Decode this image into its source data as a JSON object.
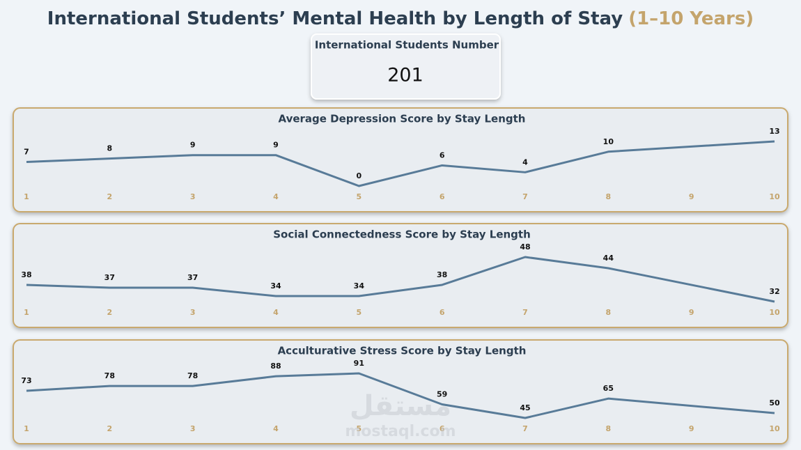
{
  "title": "International Students’ Mental Health by Length of Stay",
  "title_highlight": "(1–10 Years)",
  "kpi": {
    "label": "International Students Number",
    "value": 201
  },
  "watermark": {
    "arabic": "مستقل",
    "latin": "mostaql.com"
  },
  "chart_data": [
    {
      "type": "line",
      "title": "Average Depression Score by Stay Length",
      "x": [
        1,
        2,
        3,
        4,
        5,
        6,
        7,
        8,
        10
      ],
      "xlim": [
        1,
        10
      ],
      "xticks": [
        1,
        2,
        3,
        4,
        5,
        6,
        7,
        8,
        9,
        10
      ],
      "series": [
        {
          "name": "Average Depression Score",
          "color": "#587b98",
          "values": [
            7,
            8,
            9,
            9,
            0,
            6,
            4,
            10,
            13
          ]
        }
      ]
    },
    {
      "type": "line",
      "title": "Social Connectedness Score by Stay Length",
      "x": [
        1,
        2,
        3,
        4,
        5,
        6,
        7,
        8,
        10
      ],
      "xlim": [
        1,
        10
      ],
      "xticks": [
        1,
        2,
        3,
        4,
        5,
        6,
        7,
        8,
        9,
        10
      ],
      "series": [
        {
          "name": "Social Connectedness Score",
          "color": "#587b98",
          "values": [
            38,
            37,
            37,
            34,
            34,
            38,
            48,
            44,
            32
          ]
        }
      ]
    },
    {
      "type": "line",
      "title": "Acculturative Stress Score by Stay Length",
      "x": [
        1,
        2,
        3,
        4,
        5,
        6,
        7,
        8,
        10
      ],
      "xlim": [
        1,
        10
      ],
      "xticks": [
        1,
        2,
        3,
        4,
        5,
        6,
        7,
        8,
        9,
        10
      ],
      "series": [
        {
          "name": "Acculturative Stress Score",
          "color": "#587b98",
          "values": [
            73,
            78,
            78,
            88,
            91,
            59,
            45,
            65,
            50
          ]
        }
      ]
    }
  ]
}
